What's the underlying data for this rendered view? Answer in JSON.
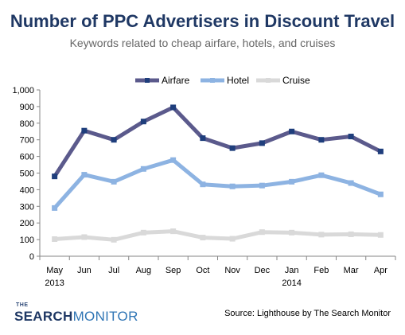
{
  "chart_data": {
    "type": "line",
    "title": "Number of PPC Advertisers in Discount Travel",
    "subtitle": "Keywords related to cheap airfare, hotels, and cruises",
    "categories": [
      "May",
      "Jun",
      "Jul",
      "Aug",
      "Sep",
      "Oct",
      "Nov",
      "Dec",
      "Jan",
      "Feb",
      "Mar",
      "Apr"
    ],
    "category_sublabels": [
      "2013",
      "",
      "",
      "",
      "",
      "",
      "",
      "",
      "2014",
      "",
      "",
      ""
    ],
    "ylim": [
      0,
      1000
    ],
    "yticks": [
      0,
      100,
      200,
      300,
      400,
      500,
      600,
      700,
      800,
      900,
      1000
    ],
    "ytick_labels": [
      "0",
      "100",
      "200",
      "300",
      "400",
      "500",
      "600",
      "700",
      "800",
      "900",
      "1,000"
    ],
    "grid": false,
    "legend_position": "top",
    "series": [
      {
        "name": "Airfare",
        "color": "#5b5a8c",
        "marker": "#1f3e7c",
        "values": [
          480,
          755,
          700,
          810,
          895,
          710,
          650,
          680,
          750,
          700,
          720,
          630
        ]
      },
      {
        "name": "Hotel",
        "color": "#8db3e2",
        "marker": "#8db3e2",
        "values": [
          290,
          490,
          448,
          525,
          578,
          432,
          420,
          425,
          448,
          487,
          440,
          372
        ]
      },
      {
        "name": "Cruise",
        "color": "#d9d9d9",
        "marker": "#d9d9d9",
        "values": [
          103,
          115,
          99,
          142,
          150,
          112,
          105,
          145,
          142,
          130,
          132,
          128
        ]
      }
    ]
  },
  "source_text": "Source: Lighthouse by The Search Monitor",
  "logo": {
    "the": "THE",
    "search": "SEARCH",
    "monitor": "MONITOR"
  }
}
